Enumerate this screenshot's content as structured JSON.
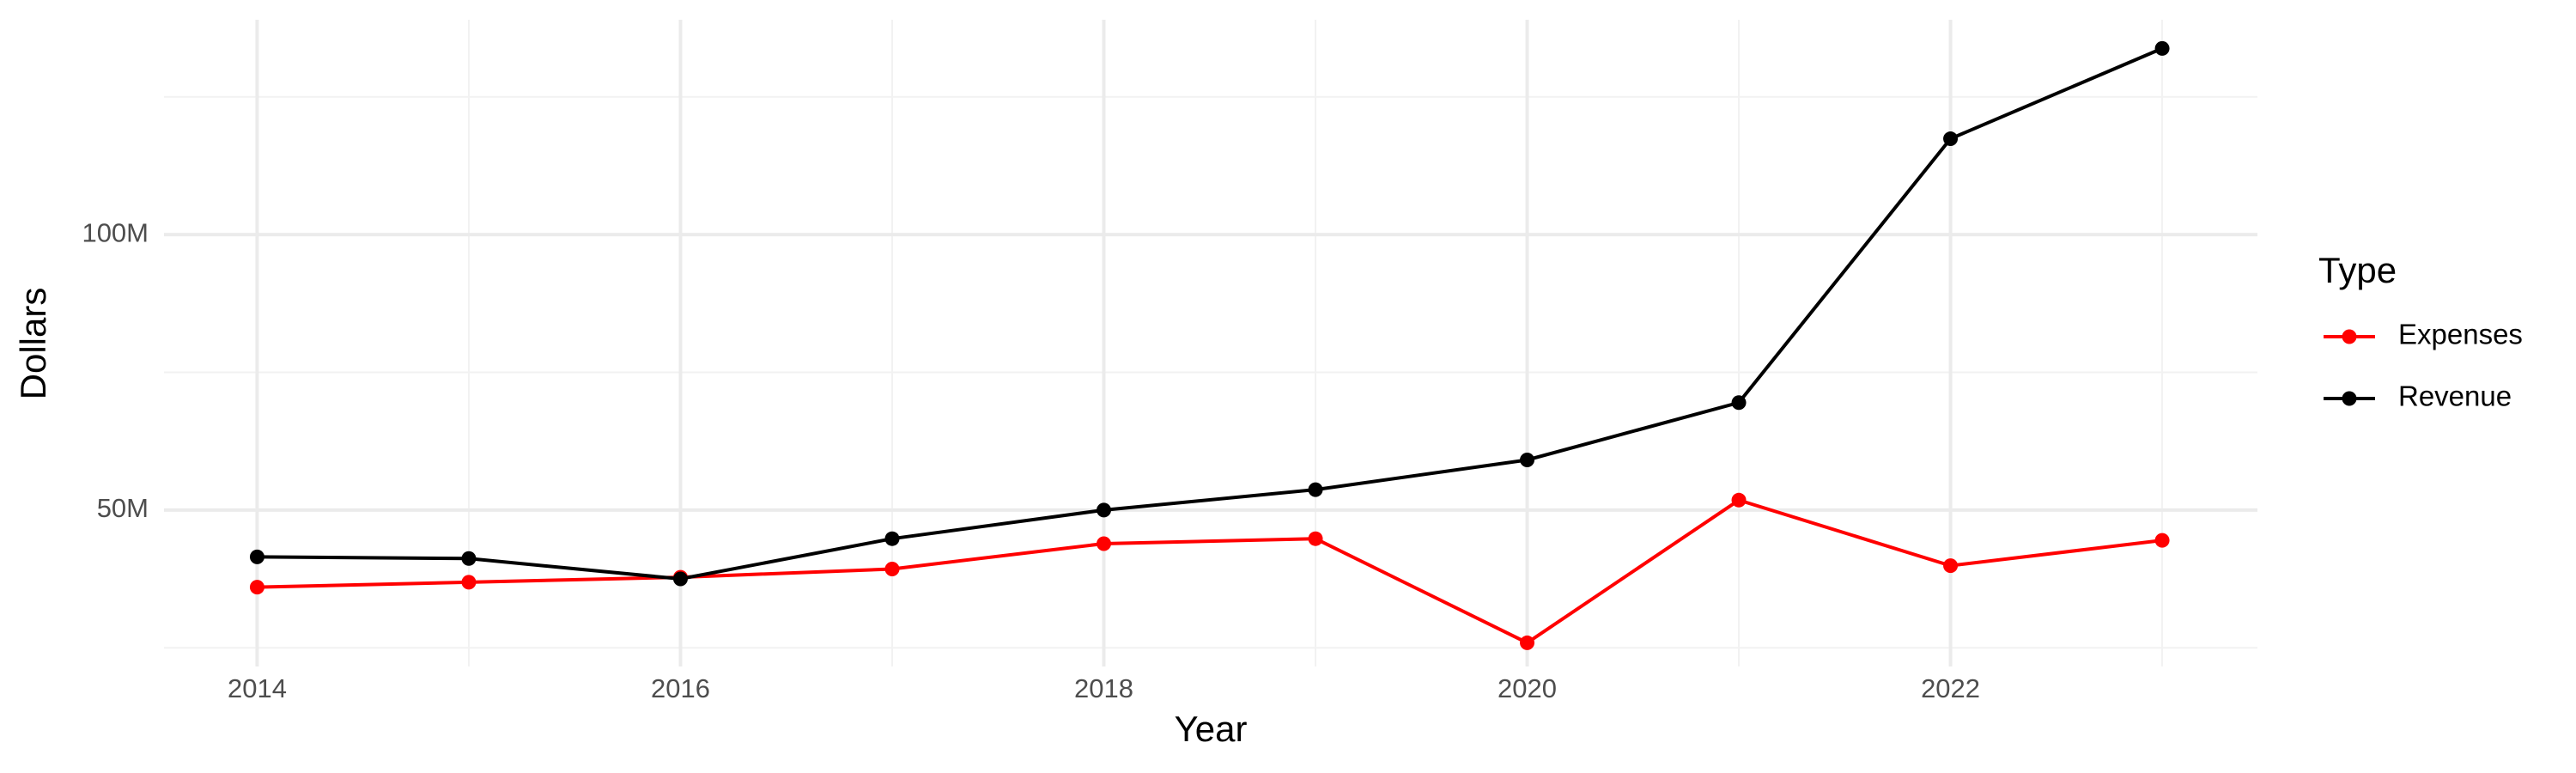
{
  "chart_data": {
    "type": "line",
    "x_label": "Year",
    "y_label": "Dollars",
    "legend_title": "Type",
    "x": [
      2014,
      2015,
      2016,
      2017,
      2018,
      2019,
      2020,
      2021,
      2022,
      2023
    ],
    "series": [
      {
        "name": "Expenses",
        "color": "#ff0000",
        "values": [
          36000000,
          36900000,
          37800000,
          39300000,
          43900000,
          44800000,
          25900000,
          51800000,
          39900000,
          44500000
        ]
      },
      {
        "name": "Revenue",
        "color": "#000000",
        "values": [
          41500000,
          41200000,
          37500000,
          44800000,
          50000000,
          53700000,
          59100000,
          69500000,
          117400000,
          133800000
        ]
      }
    ],
    "xlim": [
      2013.56,
      2023.45
    ],
    "xticks": [
      2014,
      2016,
      2018,
      2020,
      2022
    ],
    "x_minor_grid": [
      2015,
      2017,
      2019,
      2021,
      2023
    ],
    "ylim": [
      21600000,
      139000000
    ],
    "yticks": [
      {
        "value": 50000000,
        "label": "50M"
      },
      {
        "value": 100000000,
        "label": "100M"
      }
    ],
    "y_minor_grid": [
      25000000,
      75000000,
      125000000
    ],
    "grid": true,
    "legend": "right"
  }
}
